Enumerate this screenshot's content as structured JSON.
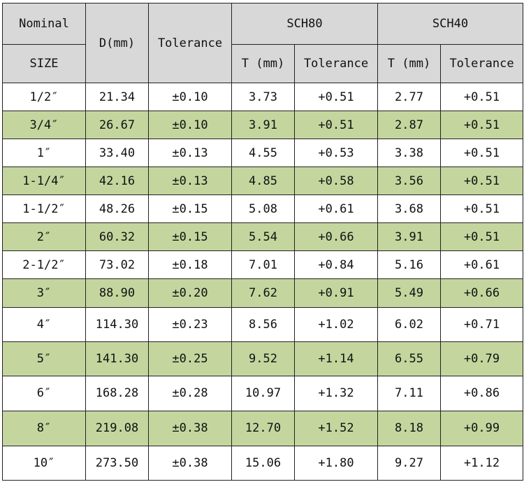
{
  "table": {
    "headers": {
      "nominal": "Nominal",
      "size": "SIZE",
      "d_mm": "D(mm)",
      "tolerance": "Tolerance",
      "sch80": "SCH80",
      "sch40": "SCH40",
      "t_mm_80": "T (mm)",
      "tol_80": "Tolerance",
      "t_mm_40": "T (mm)",
      "tol_40": "Tolerance"
    },
    "rows": [
      [
        "1/2″",
        "21.34",
        "±0.10",
        "3.73",
        "+0.51",
        "2.77",
        "+0.51"
      ],
      [
        "3/4″",
        "26.67",
        "±0.10",
        "3.91",
        "+0.51",
        "2.87",
        "+0.51"
      ],
      [
        "1″",
        "33.40",
        "±0.13",
        "4.55",
        "+0.53",
        "3.38",
        "+0.51"
      ],
      [
        "1-1/4″",
        "42.16",
        "±0.13",
        "4.85",
        "+0.58",
        "3.56",
        "+0.51"
      ],
      [
        "1-1/2″",
        "48.26",
        "±0.15",
        "5.08",
        "+0.61",
        "3.68",
        "+0.51"
      ],
      [
        "2″",
        "60.32",
        "±0.15",
        "5.54",
        "+0.66",
        "3.91",
        "+0.51"
      ],
      [
        "2-1/2″",
        "73.02",
        "±0.18",
        "7.01",
        "+0.84",
        "5.16",
        "+0.61"
      ],
      [
        "3″",
        "88.90",
        "±0.20",
        "7.62",
        "+0.91",
        "5.49",
        "+0.66"
      ],
      [
        "4″",
        "114.30",
        "±0.23",
        "8.56",
        "+1.02",
        "6.02",
        "+0.71"
      ],
      [
        "5″",
        "141.30",
        "±0.25",
        "9.52",
        "+1.14",
        "6.55",
        "+0.79"
      ],
      [
        "6″",
        "168.28",
        "±0.28",
        "10.97",
        "+1.32",
        "7.11",
        "+0.86"
      ],
      [
        "8″",
        "219.08",
        "±0.38",
        "12.70",
        "+1.52",
        "8.18",
        "+0.99"
      ],
      [
        "10″",
        "273.50",
        "±0.38",
        "15.06",
        "+1.80",
        "9.27",
        "+1.12"
      ]
    ]
  },
  "colors": {
    "header_bg": "#d8d8d8",
    "stripe_bg": "#c4d69e",
    "plain_bg": "#ffffff",
    "border": "#222222"
  }
}
